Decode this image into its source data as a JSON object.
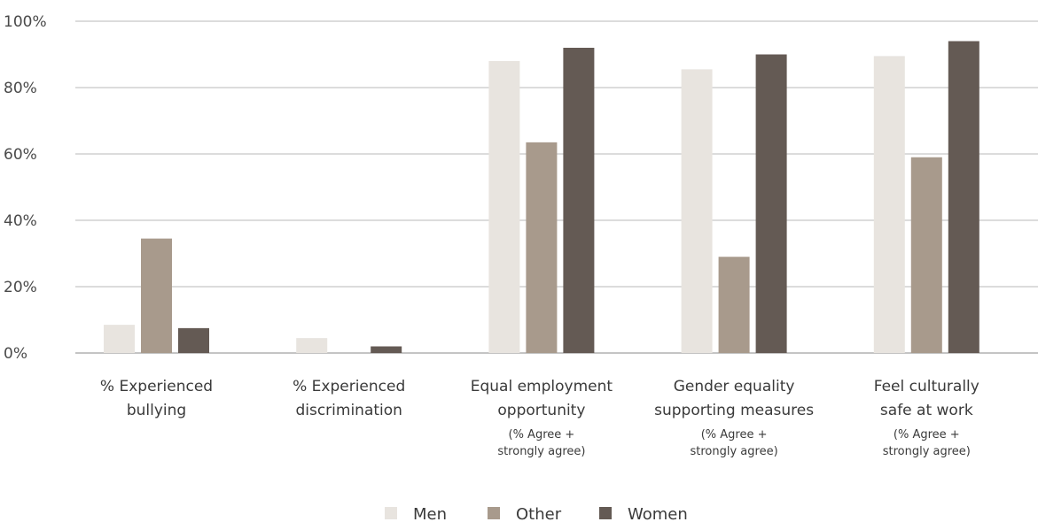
{
  "chart_data": {
    "type": "bar",
    "categories": [
      {
        "main": [
          "% Experienced",
          "bullying"
        ],
        "sub": []
      },
      {
        "main": [
          "% Experienced",
          "discrimination"
        ],
        "sub": []
      },
      {
        "main": [
          "Equal employment",
          "opportunity"
        ],
        "sub": [
          "(% Agree +",
          "strongly agree)"
        ]
      },
      {
        "main": [
          "Gender equality",
          "supporting measures"
        ],
        "sub": [
          "(% Agree +",
          "strongly agree)"
        ]
      },
      {
        "main": [
          "Feel culturally",
          "safe at work"
        ],
        "sub": [
          "(% Agree +",
          "strongly agree)"
        ]
      }
    ],
    "series": [
      {
        "name": "Men",
        "color": "#e8e4df",
        "values": [
          8.5,
          4.5,
          88,
          85.5,
          89.5
        ]
      },
      {
        "name": "Other",
        "color": "#a89a8c",
        "values": [
          34.5,
          0,
          63.5,
          29,
          59
        ]
      },
      {
        "name": "Women",
        "color": "#645a54",
        "values": [
          7.5,
          2,
          92,
          90,
          94
        ]
      }
    ],
    "ylim": [
      0,
      100
    ],
    "yticks": [
      "0%",
      "20%",
      "40%",
      "60%",
      "80%",
      "100%"
    ],
    "grid": true,
    "legend_position": "bottom-center",
    "title": "",
    "xlabel": "",
    "ylabel": ""
  }
}
